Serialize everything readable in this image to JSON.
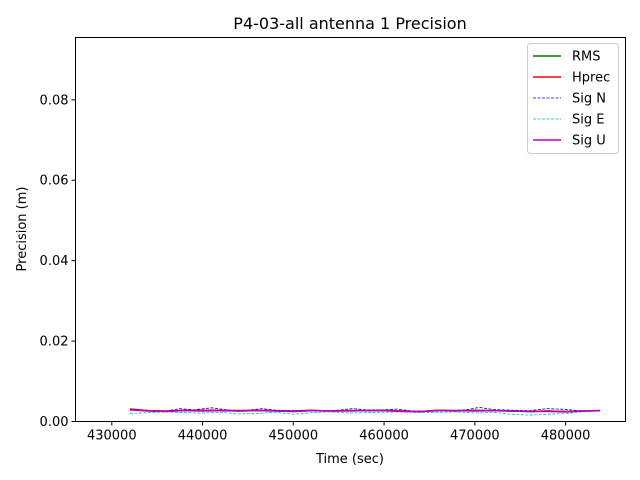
{
  "chart_data": {
    "type": "line",
    "title": "P4-03-all antenna 1 Precision",
    "xlabel": "Time (sec)",
    "ylabel": "Precision (m)",
    "xlim": [
      426000,
      486600
    ],
    "ylim": [
      0.0,
      0.0955
    ],
    "xticks": [
      430000,
      440000,
      450000,
      460000,
      470000,
      480000
    ],
    "xtick_labels": [
      "430000",
      "440000",
      "450000",
      "460000",
      "470000",
      "480000"
    ],
    "yticks": [
      0.0,
      0.02,
      0.04,
      0.06,
      0.08
    ],
    "ytick_labels": [
      "0.00",
      "0.02",
      "0.04",
      "0.06",
      "0.08"
    ],
    "grid": false,
    "legend_position": "top-right",
    "series": [
      {
        "name": "RMS",
        "color": "#008000",
        "style": "solid",
        "x": [
          432000,
          434000,
          436000,
          438000,
          440000,
          442000,
          444000,
          446000,
          448000,
          450000,
          452000,
          454000,
          456000,
          458000,
          460000,
          462000,
          464000,
          466000,
          468000,
          470000,
          472000,
          474000,
          476000,
          478000,
          480000,
          482000,
          483800
        ],
        "y": [
          0.003,
          0.0027,
          0.0025,
          0.0028,
          0.0027,
          0.0028,
          0.0026,
          0.0027,
          0.0027,
          0.0025,
          0.0027,
          0.0026,
          0.0027,
          0.0027,
          0.0027,
          0.0026,
          0.0025,
          0.0028,
          0.0026,
          0.0028,
          0.0027,
          0.0026,
          0.0025,
          0.0026,
          0.0025,
          0.0026,
          0.0027
        ]
      },
      {
        "name": "Hprec",
        "color": "#ff0000",
        "style": "solid",
        "x": [
          432000,
          434000,
          436000,
          438000,
          440000,
          442000,
          444000,
          446000,
          448000,
          450000,
          452000,
          454000,
          456000,
          458000,
          460000,
          462000,
          464000,
          466000,
          468000,
          470000,
          472000,
          474000,
          476000,
          478000,
          480000,
          482000,
          483800
        ],
        "y": [
          0.0031,
          0.0027,
          0.0026,
          0.0028,
          0.0028,
          0.0028,
          0.0027,
          0.0028,
          0.0027,
          0.0026,
          0.0028,
          0.0026,
          0.0027,
          0.0027,
          0.0028,
          0.0026,
          0.0025,
          0.0028,
          0.0027,
          0.0027,
          0.0027,
          0.0026,
          0.0025,
          0.0026,
          0.0025,
          0.0026,
          0.0027
        ]
      },
      {
        "name": "Sig N",
        "color": "#0000ff",
        "style": "dashed",
        "x": [
          432000,
          434000,
          436000,
          437500,
          439000,
          441000,
          443000,
          445000,
          446500,
          448000,
          450000,
          452000,
          454000,
          456500,
          458000,
          460000,
          461500,
          463000,
          465000,
          467000,
          469000,
          470500,
          472000,
          474000,
          476000,
          478000,
          480000,
          482000,
          483800
        ],
        "y": [
          0.003,
          0.0027,
          0.0026,
          0.0032,
          0.0029,
          0.0034,
          0.0028,
          0.0028,
          0.0032,
          0.0028,
          0.0027,
          0.0028,
          0.0026,
          0.0032,
          0.0029,
          0.0029,
          0.0031,
          0.0026,
          0.0025,
          0.0027,
          0.0029,
          0.0035,
          0.003,
          0.0028,
          0.0027,
          0.0032,
          0.003,
          0.0026,
          0.0027
        ]
      },
      {
        "name": "Sig E",
        "color": "#00bfbf",
        "style": "dashed",
        "x": [
          432000,
          434000,
          436000,
          438000,
          440000,
          442000,
          444000,
          446000,
          448000,
          450000,
          452000,
          454000,
          456000,
          458000,
          460000,
          462000,
          464000,
          466000,
          468000,
          470000,
          472000,
          474000,
          476000,
          478000,
          480000,
          482000,
          483800
        ],
        "y": [
          0.002,
          0.0022,
          0.0024,
          0.0022,
          0.0021,
          0.0023,
          0.0019,
          0.002,
          0.0023,
          0.0018,
          0.0022,
          0.0024,
          0.0021,
          0.0022,
          0.0023,
          0.0024,
          0.0022,
          0.0023,
          0.0024,
          0.0021,
          0.0023,
          0.0018,
          0.0016,
          0.0018,
          0.002,
          0.0024,
          0.0026
        ]
      },
      {
        "name": "Sig U",
        "color": "#bf00bf",
        "style": "solid",
        "x": [
          432000,
          434000,
          436000,
          438000,
          440000,
          442000,
          444000,
          446000,
          448000,
          450000,
          452000,
          454000,
          456000,
          458000,
          460000,
          462000,
          464000,
          466000,
          468000,
          470000,
          472000,
          474000,
          476000,
          478000,
          480000,
          482000,
          483800
        ],
        "y": [
          0.0029,
          0.0026,
          0.0025,
          0.0027,
          0.0026,
          0.0027,
          0.0026,
          0.0027,
          0.0026,
          0.0025,
          0.0027,
          0.0026,
          0.0026,
          0.0027,
          0.0027,
          0.0025,
          0.0025,
          0.0027,
          0.0027,
          0.0026,
          0.0027,
          0.0026,
          0.0025,
          0.0025,
          0.0024,
          0.0026,
          0.0027
        ]
      }
    ]
  }
}
